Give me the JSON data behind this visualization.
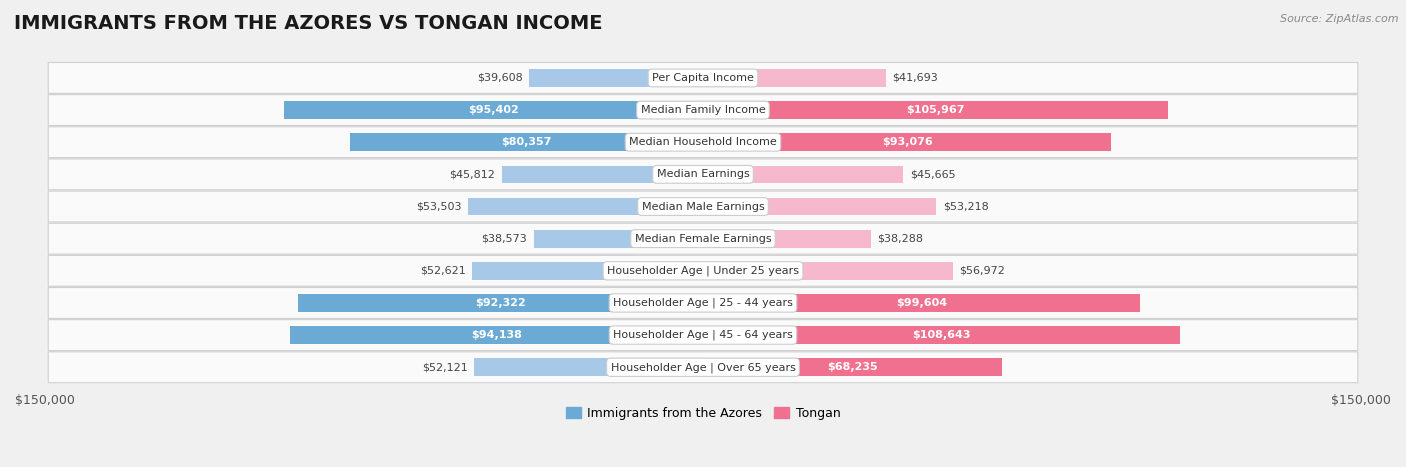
{
  "title": "IMMIGRANTS FROM THE AZORES VS TONGAN INCOME",
  "source": "Source: ZipAtlas.com",
  "categories": [
    "Per Capita Income",
    "Median Family Income",
    "Median Household Income",
    "Median Earnings",
    "Median Male Earnings",
    "Median Female Earnings",
    "Householder Age | Under 25 years",
    "Householder Age | 25 - 44 years",
    "Householder Age | 45 - 64 years",
    "Householder Age | Over 65 years"
  ],
  "azores_values": [
    39608,
    95402,
    80357,
    45812,
    53503,
    38573,
    52621,
    92322,
    94138,
    52121
  ],
  "tongan_values": [
    41693,
    105967,
    93076,
    45665,
    53218,
    38288,
    56972,
    99604,
    108643,
    68235
  ],
  "azores_labels": [
    "$39,608",
    "$95,402",
    "$80,357",
    "$45,812",
    "$53,503",
    "$38,573",
    "$52,621",
    "$92,322",
    "$94,138",
    "$52,121"
  ],
  "tongan_labels": [
    "$41,693",
    "$105,967",
    "$93,076",
    "$45,665",
    "$53,218",
    "$38,288",
    "$56,972",
    "$99,604",
    "$108,643",
    "$68,235"
  ],
  "azores_color_light": "#a8c8e8",
  "azores_color_dark": "#6aaad4",
  "tongan_color_light": "#f5b8cc",
  "tongan_color_dark": "#f07090",
  "max_value": 150000,
  "background_color": "#f0f0f0",
  "row_bg_color": "#fafafa",
  "label_bg_color": "#ffffff",
  "legend_azores": "Immigrants from the Azores",
  "legend_tongan": "Tongan",
  "title_fontsize": 14,
  "source_fontsize": 8,
  "axis_label_fontsize": 9,
  "bar_label_fontsize": 8,
  "category_fontsize": 8,
  "inside_label_threshold": 65000
}
